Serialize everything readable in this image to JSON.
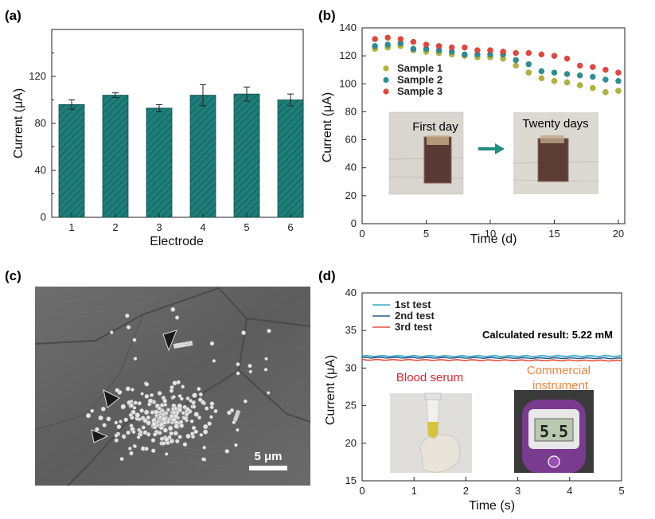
{
  "panels": {
    "a": {
      "label": "(a)"
    },
    "b": {
      "label": "(b)"
    },
    "c": {
      "label": "(c)",
      "scale_bar": "5 μm"
    },
    "d": {
      "label": "(d)"
    }
  },
  "colors": {
    "bar": "#1e7f7a",
    "sample1": "#b3b534",
    "sample2": "#2a8f96",
    "sample3": "#e8453a",
    "test1": "#35a9c9",
    "test2": "#2b5a8a",
    "test3": "#e8533f",
    "arrow": "#1e8f82",
    "photo_label_red": "#e0242c",
    "photo_label_orange": "#f0843c"
  },
  "chart_data": [
    {
      "id": "a",
      "type": "bar",
      "xlabel": "Electrode",
      "ylabel": "Current (μA)",
      "categories": [
        "1",
        "2",
        "3",
        "4",
        "5",
        "6"
      ],
      "values": [
        96,
        104,
        93,
        104,
        105,
        100
      ],
      "errors": [
        4,
        2,
        3,
        9,
        6,
        5
      ],
      "ylim": [
        0,
        160
      ],
      "yticks": [
        "0",
        "40",
        "80",
        "120"
      ]
    },
    {
      "id": "b",
      "type": "scatter",
      "xlabel": "Time (d)",
      "ylabel": "Current (μA)",
      "xlim": [
        0,
        20.5
      ],
      "ylim": [
        0,
        140
      ],
      "xticks": [
        "0",
        "5",
        "10",
        "15",
        "20"
      ],
      "yticks": [
        "0",
        "20",
        "40",
        "60",
        "80",
        "100",
        "120",
        "140"
      ],
      "x": [
        1,
        2,
        3,
        4,
        5,
        6,
        7,
        8,
        9,
        10,
        11,
        12,
        13,
        14,
        15,
        16,
        17,
        18,
        19,
        20
      ],
      "series": [
        {
          "name": "Sample 1",
          "values": [
            125,
            126,
            127,
            124,
            123,
            122,
            121,
            120,
            119,
            119,
            118,
            113,
            108,
            104,
            102,
            101,
            99,
            97,
            94,
            95
          ]
        },
        {
          "name": "Sample 2",
          "values": [
            127,
            128,
            129,
            125,
            125,
            124,
            123,
            121,
            121,
            121,
            121,
            117,
            114,
            109,
            108,
            107,
            106,
            105,
            103,
            102
          ]
        },
        {
          "name": "Sample 3",
          "values": [
            132,
            133,
            132,
            130,
            128,
            127,
            126,
            126,
            124,
            124,
            123,
            122,
            122,
            121,
            120,
            118,
            113,
            112,
            110,
            108
          ]
        }
      ],
      "inset_labels": {
        "first": "First  day",
        "last": "Twenty  days"
      }
    },
    {
      "id": "d",
      "type": "line",
      "xlabel": "Time (s)",
      "ylabel": "Current (μA)",
      "xlim": [
        0,
        5
      ],
      "ylim": [
        15,
        40
      ],
      "xticks": [
        "0",
        "1",
        "2",
        "3",
        "4",
        "5"
      ],
      "yticks": [
        "15",
        "20",
        "25",
        "30",
        "35",
        "40"
      ],
      "series": [
        {
          "name": "1st test",
          "values": [
            31.6,
            31.6
          ]
        },
        {
          "name": "2nd test",
          "values": [
            31.4,
            31.3
          ]
        },
        {
          "name": "3rd test",
          "values": [
            31.1,
            31.0
          ]
        }
      ],
      "annotation": "Calculated  result:  5.22 mM",
      "inset_labels": {
        "serum": "Blood serum",
        "instrument": "Commercial instrument",
        "display": "5.5"
      }
    }
  ]
}
